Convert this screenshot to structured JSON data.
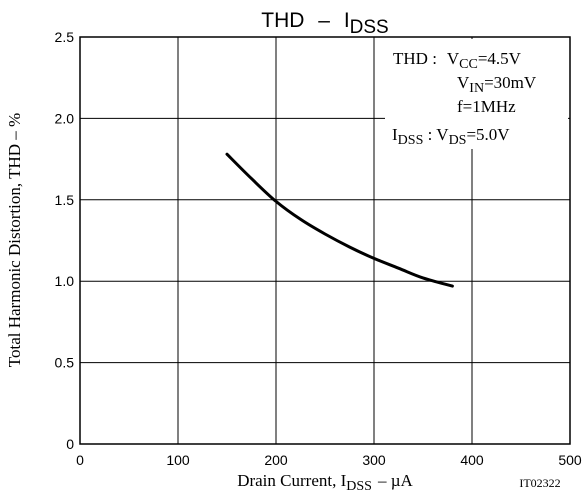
{
  "chart_data": {
    "type": "line",
    "title": "THD",
    "title_dash": "–",
    "title_symbol": "I",
    "title_symbol_sub": "DSS",
    "xlabel": {
      "prefix": "Drain Current, I",
      "sub": "DSS",
      "unit": "–  µA"
    },
    "ylabel": "Total Harmonic Distortion, THD  –  %",
    "xlim": [
      0,
      500
    ],
    "ylim": [
      0,
      2.5
    ],
    "x_ticks": [
      "0",
      "100",
      "200",
      "300",
      "400",
      "500"
    ],
    "y_ticks": [
      "0",
      "0.5",
      "1.0",
      "1.5",
      "2.0",
      "2.5"
    ],
    "grid": true,
    "figure_id": "IT02322",
    "conditions": {
      "thd_label": "THD :",
      "vcc_symbol": "V",
      "vcc_sub": "CC",
      "vcc_value": "=4.5V",
      "vin_symbol": "V",
      "vin_sub": "IN",
      "vin_value": "=30mV",
      "freq": "f=1MHz",
      "idss_symbol": "I",
      "idss_sub": "DSS",
      "idss_sep": " : ",
      "vds_symbol": "V",
      "vds_sub": "DS",
      "vds_value": "=5.0V"
    },
    "series": [
      {
        "x": [
          150,
          175,
          200,
          225,
          250,
          275,
          300,
          325,
          350,
          380
        ],
        "y": [
          1.78,
          1.63,
          1.49,
          1.38,
          1.29,
          1.21,
          1.14,
          1.08,
          1.02,
          0.97
        ]
      }
    ]
  }
}
